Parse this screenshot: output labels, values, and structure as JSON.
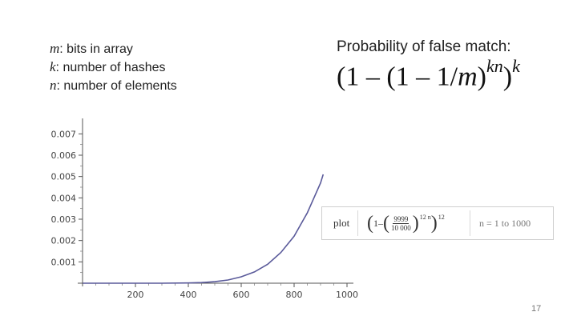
{
  "definitions": [
    {
      "var": "m",
      "text": ": bits in array"
    },
    {
      "var": "k",
      "text": ": number of hashes"
    },
    {
      "var": "n",
      "text": ": number of elements"
    }
  ],
  "probability": {
    "title": "Probability of false match:",
    "formula_base": "(1 – (1 – 1/",
    "formula_var": "m",
    "formula_close": ")",
    "formula_exp": "kn",
    "formula_close2": ")",
    "formula_exp2": "k"
  },
  "query": {
    "command": "plot",
    "one": "1",
    "minus": "–",
    "numerator": "9999",
    "denominator": "10 000",
    "inner_exp": "12 n",
    "outer_exp": "12",
    "range": "n = 1 to 1000"
  },
  "page_number": "17",
  "chart_data": {
    "type": "line",
    "title": "",
    "xlabel": "",
    "ylabel": "",
    "xlim": [
      0,
      1000
    ],
    "ylim": [
      0,
      0.0075
    ],
    "xticks": [
      200,
      400,
      600,
      800,
      1000
    ],
    "xtick_labels": [
      "200",
      "400",
      "600",
      "800",
      "1000"
    ],
    "yticks": [
      0.001,
      0.002,
      0.003,
      0.004,
      0.005,
      0.006,
      0.007
    ],
    "ytick_labels": [
      "0.001",
      "0.002",
      "0.003",
      "0.004",
      "0.005",
      "0.006",
      "0.007"
    ],
    "grid": false,
    "line_color": "#5a5a9a",
    "series": [
      {
        "x": [
          1,
          100,
          200,
          300,
          400,
          450,
          500,
          550,
          600,
          650,
          700,
          750,
          800,
          850,
          900,
          910
        ],
        "y": [
          0,
          0,
          0,
          0,
          1e-05,
          3e-05,
          7e-05,
          0.00015,
          0.0003,
          0.00053,
          0.00089,
          0.00144,
          0.0022,
          0.0033,
          0.0047,
          0.0051
        ]
      }
    ]
  }
}
